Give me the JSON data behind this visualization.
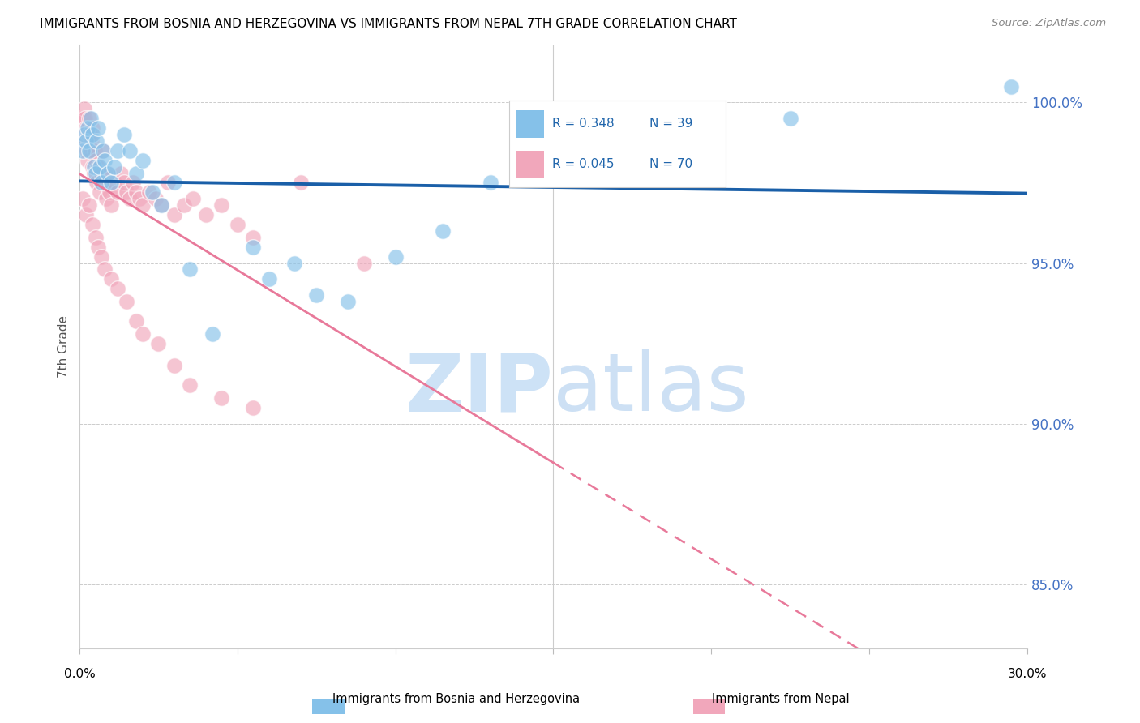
{
  "title": "IMMIGRANTS FROM BOSNIA AND HERZEGOVINA VS IMMIGRANTS FROM NEPAL 7TH GRADE CORRELATION CHART",
  "source": "Source: ZipAtlas.com",
  "ylabel": "7th Grade",
  "xlim": [
    0.0,
    30.0
  ],
  "ylim": [
    83.0,
    101.8
  ],
  "yticks": [
    85.0,
    90.0,
    95.0,
    100.0
  ],
  "legend_r_bosnia": "R = 0.348",
  "legend_n_bosnia": "N = 39",
  "legend_r_nepal": "R = 0.045",
  "legend_n_nepal": "N = 70",
  "bosnia_color": "#85c1e9",
  "nepal_color": "#f1a7bb",
  "bosnia_line_color": "#1a5fa8",
  "nepal_line_color": "#e8799a",
  "watermark_zip": "ZIP",
  "watermark_atlas": "atlas",
  "watermark_color": "#d6e8f8",
  "bosnia_x": [
    0.1,
    0.15,
    0.2,
    0.25,
    0.3,
    0.35,
    0.4,
    0.45,
    0.5,
    0.55,
    0.6,
    0.65,
    0.7,
    0.75,
    0.8,
    0.9,
    1.0,
    1.1,
    1.2,
    1.4,
    1.6,
    1.8,
    2.0,
    2.3,
    2.6,
    3.0,
    3.5,
    4.2,
    5.5,
    6.0,
    6.8,
    7.5,
    8.5,
    10.0,
    11.5,
    13.0,
    15.0,
    22.5,
    29.5
  ],
  "bosnia_y": [
    98.5,
    99.0,
    98.8,
    99.2,
    98.5,
    99.5,
    99.0,
    98.0,
    97.8,
    98.8,
    99.2,
    98.0,
    97.5,
    98.5,
    98.2,
    97.8,
    97.5,
    98.0,
    98.5,
    99.0,
    98.5,
    97.8,
    98.2,
    97.2,
    96.8,
    97.5,
    94.8,
    92.8,
    95.5,
    94.5,
    95.0,
    94.0,
    93.8,
    95.2,
    96.0,
    97.5,
    98.0,
    99.5,
    100.5
  ],
  "nepal_x": [
    0.05,
    0.08,
    0.1,
    0.12,
    0.15,
    0.18,
    0.2,
    0.22,
    0.25,
    0.28,
    0.3,
    0.33,
    0.35,
    0.38,
    0.4,
    0.42,
    0.45,
    0.48,
    0.5,
    0.55,
    0.6,
    0.65,
    0.7,
    0.75,
    0.8,
    0.85,
    0.9,
    0.95,
    1.0,
    1.1,
    1.2,
    1.3,
    1.4,
    1.5,
    1.6,
    1.7,
    1.8,
    1.9,
    2.0,
    2.2,
    2.4,
    2.6,
    2.8,
    3.0,
    3.3,
    3.6,
    4.0,
    4.5,
    5.0,
    5.5,
    0.1,
    0.2,
    0.3,
    0.4,
    0.5,
    0.6,
    0.7,
    0.8,
    1.0,
    1.2,
    1.5,
    1.8,
    2.0,
    2.5,
    3.0,
    3.5,
    4.5,
    5.5,
    7.0,
    9.0
  ],
  "nepal_y": [
    99.5,
    99.2,
    98.8,
    99.5,
    99.8,
    99.5,
    99.2,
    98.5,
    98.2,
    99.0,
    99.5,
    99.0,
    98.5,
    98.8,
    99.2,
    98.0,
    97.8,
    98.5,
    98.2,
    97.5,
    98.0,
    97.2,
    97.8,
    98.5,
    97.5,
    97.0,
    97.8,
    97.2,
    96.8,
    97.5,
    97.2,
    97.8,
    97.5,
    97.2,
    97.0,
    97.5,
    97.2,
    97.0,
    96.8,
    97.2,
    97.0,
    96.8,
    97.5,
    96.5,
    96.8,
    97.0,
    96.5,
    96.8,
    96.2,
    95.8,
    97.0,
    96.5,
    96.8,
    96.2,
    95.8,
    95.5,
    95.2,
    94.8,
    94.5,
    94.2,
    93.8,
    93.2,
    92.8,
    92.5,
    91.8,
    91.2,
    90.8,
    90.5,
    97.5,
    95.0
  ]
}
